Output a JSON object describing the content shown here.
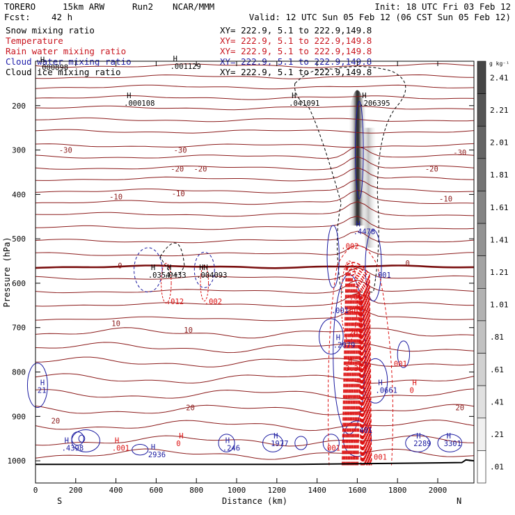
{
  "header": {
    "model": "TORERO",
    "resolution": "15km ARW",
    "run": "Run2",
    "source": "NCAR/MMM",
    "init": "Init: 18 UTC Fri 03 Feb 12",
    "fcst_label": "Fcst:",
    "fcst_value": "42 h",
    "valid": "Valid: 12 UTC Sun 05 Feb 12 (06 CST Sun 05 Feb 12)"
  },
  "legend": [
    {
      "label": "Snow mixing ratio",
      "color": "#000000",
      "xy": "XY= 222.9,  5.1 to 222.9,149.8"
    },
    {
      "label": "Temperature",
      "color": "#c8141e",
      "xy": "XY= 222.9,  5.1 to 222.9,149.8"
    },
    {
      "label": "Rain water mixing ratio",
      "color": "#c8141e",
      "xy": "XY= 222.9,  5.1 to 222.9,149.8"
    },
    {
      "label": "Cloud water mixing ratio",
      "color": "#1e1eaa",
      "xy": "XY= 222.9,  5.1 to 222.9,149.8"
    },
    {
      "label": "Cloud ice mixing ratio",
      "color": "#000000",
      "xy": "XY= 222.9,  5.1 to 222.9,149.8"
    }
  ],
  "colors": {
    "temperature": "#8b1a1a",
    "freezing": "#7a0f0f",
    "rain": "#dd1111",
    "cloud_water": "#1a1aa0",
    "cloud_ice": "#000000",
    "terrain": "#000000"
  },
  "chart_data": {
    "type": "cross-section",
    "xlabel": "Distance (km)",
    "ylabel": "Pressure (hPa)",
    "xlim": [
      0,
      2180
    ],
    "ylim": [
      1050,
      100
    ],
    "x_ticks": [
      "0",
      "200",
      "400",
      "600",
      "800",
      "1000",
      "1200",
      "1400",
      "1600",
      "1800",
      "2000"
    ],
    "y_ticks": [
      "200",
      "300",
      "400",
      "500",
      "600",
      "700",
      "800",
      "900",
      "1000"
    ],
    "x_end_labels": {
      "left": "S",
      "right": "N"
    },
    "colorbar": {
      "unit": "g kg⁻¹",
      "labels": [
        "2.41",
        "2.21",
        "2.01",
        "1.81",
        "1.61",
        "1.41",
        "1.21",
        "1.01",
        ".81",
        ".61",
        ".41",
        ".21",
        ".01"
      ]
    },
    "temperature_labels": [
      {
        "x": 150,
        "p": 300,
        "text": "-30"
      },
      {
        "x": 720,
        "p": 300,
        "text": "-30"
      },
      {
        "x": 2110,
        "p": 305,
        "text": "-30"
      },
      {
        "x": 705,
        "p": 342,
        "text": "-20"
      },
      {
        "x": 820,
        "p": 342,
        "text": "-20"
      },
      {
        "x": 1970,
        "p": 342,
        "text": "-20"
      },
      {
        "x": 400,
        "p": 405,
        "text": "-10"
      },
      {
        "x": 710,
        "p": 398,
        "text": "-10"
      },
      {
        "x": 2040,
        "p": 410,
        "text": "-10"
      },
      {
        "x": 420,
        "p": 560,
        "text": "0"
      },
      {
        "x": 1850,
        "p": 555,
        "text": "0"
      },
      {
        "x": 400,
        "p": 690,
        "text": "10"
      },
      {
        "x": 760,
        "p": 705,
        "text": "10"
      },
      {
        "x": 100,
        "p": 910,
        "text": "20"
      },
      {
        "x": 770,
        "p": 880,
        "text": "20"
      },
      {
        "x": 2110,
        "p": 880,
        "text": "20"
      }
    ],
    "annotations": [
      {
        "x": 10,
        "p": 102,
        "h": "H",
        "text": ".000898",
        "color": "#000000"
      },
      {
        "x": 670,
        "p": 100,
        "h": "H",
        "text": ".001129",
        "color": "#000000"
      },
      {
        "x": 440,
        "p": 183,
        "h": "H",
        "text": ".000108",
        "color": "#000000"
      },
      {
        "x": 1260,
        "p": 183,
        "h": "H",
        "text": ".041091",
        "color": "#000000"
      },
      {
        "x": 1610,
        "p": 183,
        "h": "H",
        "text": ".206395",
        "color": "#000000"
      },
      {
        "x": 1580,
        "p": 472,
        "h": "H",
        "text": ".4478",
        "color": "#1a1aa0"
      },
      {
        "x": 1520,
        "p": 505,
        "h": "",
        "text": ".002",
        "color": "#dd1111"
      },
      {
        "x": 560,
        "p": 570,
        "h": "H",
        "text": ".0354",
        "color": "#000000"
      },
      {
        "x": 640,
        "p": 570,
        "h": "H",
        "text": ".0433",
        "color": "#000000"
      },
      {
        "x": 800,
        "p": 570,
        "h": "HH",
        "text": ".004093",
        "color": "#000000"
      },
      {
        "x": 650,
        "p": 630,
        "h": "",
        "text": ".012",
        "color": "#dd1111"
      },
      {
        "x": 840,
        "p": 630,
        "h": "",
        "text": ".002",
        "color": "#dd1111"
      },
      {
        "x": 1680,
        "p": 570,
        "h": "",
        "text": ".001",
        "color": "#1a1aa0"
      },
      {
        "x": 1560,
        "p": 620,
        "h": "",
        "text": ".001",
        "color": "#dd1111"
      },
      {
        "x": 1470,
        "p": 650,
        "h": "",
        "text": ".001",
        "color": "#1a1aa0"
      },
      {
        "x": 1560,
        "p": 650,
        "h": "",
        "text": "401",
        "color": "#dd1111"
      },
      {
        "x": 1560,
        "p": 700,
        "h": "",
        "text": "201",
        "color": "#dd1111"
      },
      {
        "x": 1480,
        "p": 728,
        "h": "H",
        "text": ".2079",
        "color": "#1a1aa0"
      },
      {
        "x": 1540,
        "p": 780,
        "h": "H",
        "text": "3.357",
        "color": "#dd1111"
      },
      {
        "x": 1760,
        "p": 770,
        "h": "",
        "text": ".001",
        "color": "#dd1111"
      },
      {
        "x": 1690,
        "p": 830,
        "h": "H",
        "text": ".0661",
        "color": "#1a1aa0"
      },
      {
        "x": 1860,
        "p": 830,
        "h": "H",
        "text": "0",
        "color": "#dd1111"
      },
      {
        "x": 10,
        "p": 830,
        "h": "H",
        "text": "21",
        "color": "#1a1aa0"
      },
      {
        "x": 130,
        "p": 960,
        "h": "H",
        "text": ".4398",
        "color": "#1a1aa0"
      },
      {
        "x": 380,
        "p": 960,
        "h": "H",
        "text": ".001",
        "color": "#dd1111"
      },
      {
        "x": 700,
        "p": 950,
        "h": "H",
        "text": "0",
        "color": "#dd1111"
      },
      {
        "x": 560,
        "p": 975,
        "h": "H",
        "text": "2936",
        "color": "#1a1aa0"
      },
      {
        "x": 930,
        "p": 960,
        "h": "H",
        "text": ".246",
        "color": "#1a1aa0"
      },
      {
        "x": 1170,
        "p": 950,
        "h": "H",
        "text": "1977",
        "color": "#1a1aa0"
      },
      {
        "x": 1450,
        "p": 960,
        "h": "",
        "text": "001",
        "color": "#dd1111"
      },
      {
        "x": 1880,
        "p": 950,
        "h": "H",
        "text": "2289",
        "color": "#1a1aa0"
      },
      {
        "x": 2030,
        "p": 950,
        "h": "H",
        "text": "3301",
        "color": "#1a1aa0"
      },
      {
        "x": 1660,
        "p": 980,
        "h": "",
        "text": ".001",
        "color": "#dd1111"
      },
      {
        "x": 1610,
        "p": 920,
        "h": "",
        "text": "401",
        "color": "#1a1aa0"
      }
    ]
  }
}
